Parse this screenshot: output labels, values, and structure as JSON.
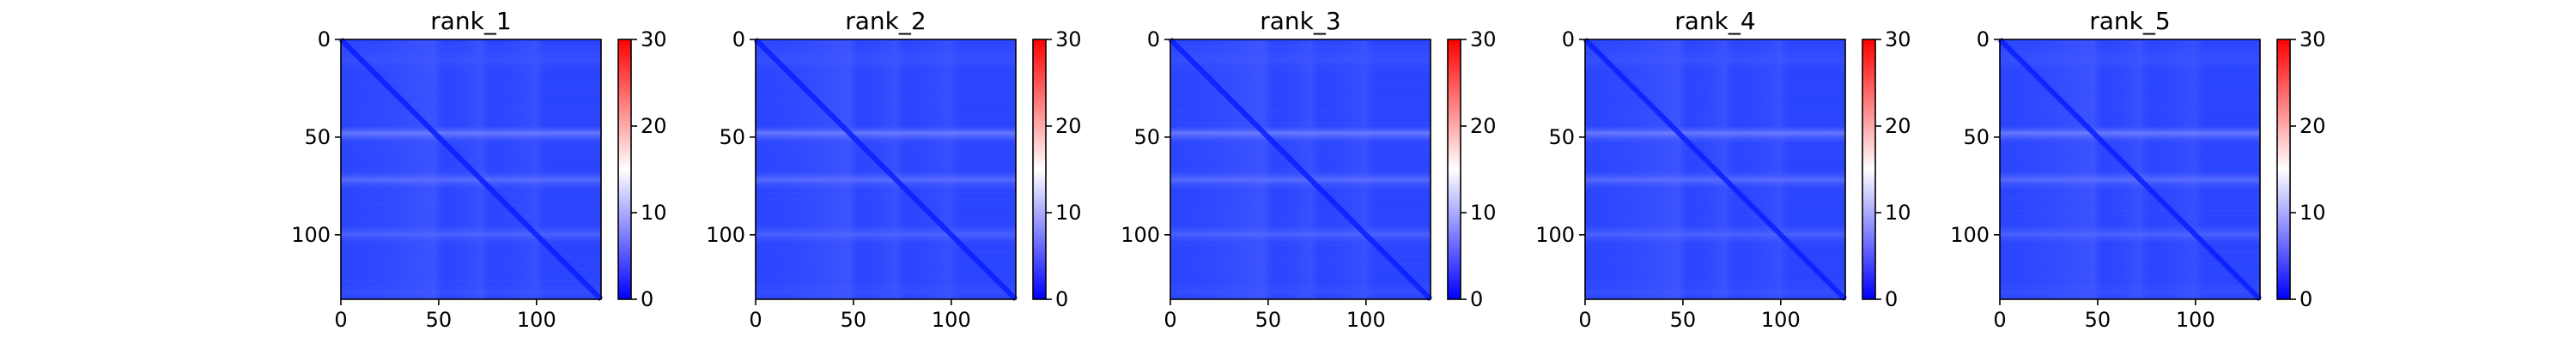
{
  "chart_data": [
    {
      "type": "heatmap",
      "title": "rank_1",
      "matrix_size": 133,
      "x_ticks": [
        0,
        50,
        100
      ],
      "y_ticks": [
        0,
        50,
        100
      ],
      "xlim": [
        0,
        133
      ],
      "ylim": [
        133,
        0
      ],
      "colorbar": {
        "min": 0,
        "max": 30,
        "ticks": [
          0,
          10,
          20,
          30
        ],
        "colors": [
          "#0000ff",
          "#ffffff",
          "#ff0000"
        ]
      },
      "value_range": [
        0,
        12
      ],
      "grid": false
    },
    {
      "type": "heatmap",
      "title": "rank_2",
      "matrix_size": 133,
      "x_ticks": [
        0,
        50,
        100
      ],
      "y_ticks": [
        0,
        50,
        100
      ],
      "xlim": [
        0,
        133
      ],
      "ylim": [
        133,
        0
      ],
      "colorbar": {
        "min": 0,
        "max": 30,
        "ticks": [
          0,
          10,
          20,
          30
        ],
        "colors": [
          "#0000ff",
          "#ffffff",
          "#ff0000"
        ]
      },
      "value_range": [
        0,
        12
      ],
      "grid": false
    },
    {
      "type": "heatmap",
      "title": "rank_3",
      "matrix_size": 133,
      "x_ticks": [
        0,
        50,
        100
      ],
      "y_ticks": [
        0,
        50,
        100
      ],
      "xlim": [
        0,
        133
      ],
      "ylim": [
        133,
        0
      ],
      "colorbar": {
        "min": 0,
        "max": 30,
        "ticks": [
          0,
          10,
          20,
          30
        ],
        "colors": [
          "#0000ff",
          "#ffffff",
          "#ff0000"
        ]
      },
      "value_range": [
        0,
        12
      ],
      "grid": false
    },
    {
      "type": "heatmap",
      "title": "rank_4",
      "matrix_size": 133,
      "x_ticks": [
        0,
        50,
        100
      ],
      "y_ticks": [
        0,
        50,
        100
      ],
      "xlim": [
        0,
        133
      ],
      "ylim": [
        133,
        0
      ],
      "colorbar": {
        "min": 0,
        "max": 30,
        "ticks": [
          0,
          10,
          20,
          30
        ],
        "colors": [
          "#0000ff",
          "#ffffff",
          "#ff0000"
        ]
      },
      "value_range": [
        0,
        12
      ],
      "grid": false
    },
    {
      "type": "heatmap",
      "title": "rank_5",
      "matrix_size": 133,
      "x_ticks": [
        0,
        50,
        100
      ],
      "y_ticks": [
        0,
        50,
        100
      ],
      "xlim": [
        0,
        133
      ],
      "ylim": [
        133,
        0
      ],
      "colorbar": {
        "min": 0,
        "max": 30,
        "ticks": [
          0,
          10,
          20,
          30
        ],
        "colors": [
          "#0000ff",
          "#ffffff",
          "#ff0000"
        ]
      },
      "value_range": [
        0,
        12
      ],
      "grid": false
    }
  ]
}
